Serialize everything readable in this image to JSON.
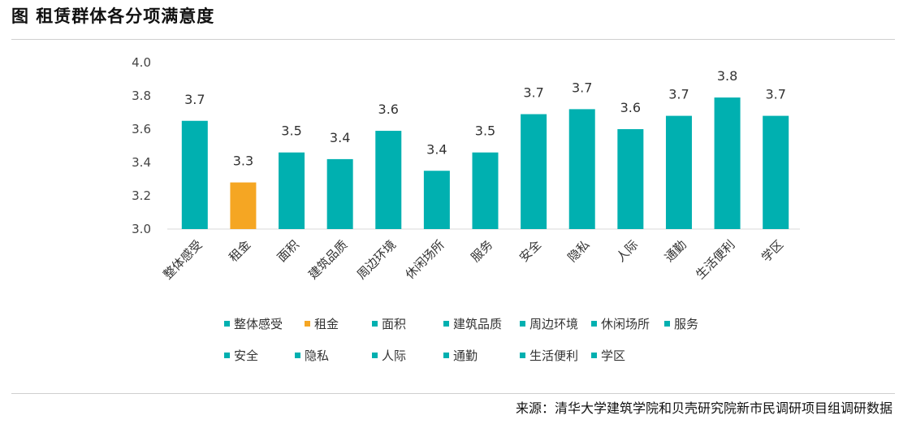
{
  "page": {
    "title": "图  租赁群体各分项满意度",
    "source": "来源：清华大学建筑学院和贝壳研究院新市民调研项目组调研数据"
  },
  "colors": {
    "teal": "#00B0B0",
    "orange": "#F5A623",
    "axis": "#d9d9d9"
  },
  "chart_data": {
    "type": "bar",
    "title": "",
    "xlabel": "",
    "ylabel": "",
    "ylim": [
      3.0,
      4.0
    ],
    "yticks": [
      "3.0",
      "3.2",
      "3.4",
      "3.6",
      "3.8",
      "4.0"
    ],
    "categories": [
      "整体感受",
      "租金",
      "面积",
      "建筑品质",
      "周边环境",
      "休闲场所",
      "服务",
      "安全",
      "隐私",
      "人际",
      "通勤",
      "生活便利",
      "学区"
    ],
    "values": [
      3.65,
      3.28,
      3.46,
      3.42,
      3.59,
      3.35,
      3.46,
      3.69,
      3.72,
      3.6,
      3.68,
      3.79,
      3.68
    ],
    "data_labels": [
      "3.7",
      "3.3",
      "3.5",
      "3.4",
      "3.6",
      "3.4",
      "3.5",
      "3.7",
      "3.7",
      "3.6",
      "3.7",
      "3.8",
      "3.7"
    ],
    "bar_colors": [
      "#00B0B0",
      "#F5A623",
      "#00B0B0",
      "#00B0B0",
      "#00B0B0",
      "#00B0B0",
      "#00B0B0",
      "#00B0B0",
      "#00B0B0",
      "#00B0B0",
      "#00B0B0",
      "#00B0B0",
      "#00B0B0"
    ],
    "legend": [
      "整体感受",
      "租金",
      "面积",
      "建筑品质",
      "周边环境",
      "休闲场所",
      "服务",
      "安全",
      "隐私",
      "人际",
      "通勤",
      "生活便利",
      "学区"
    ],
    "legend_position": "bottom",
    "grid": false
  }
}
